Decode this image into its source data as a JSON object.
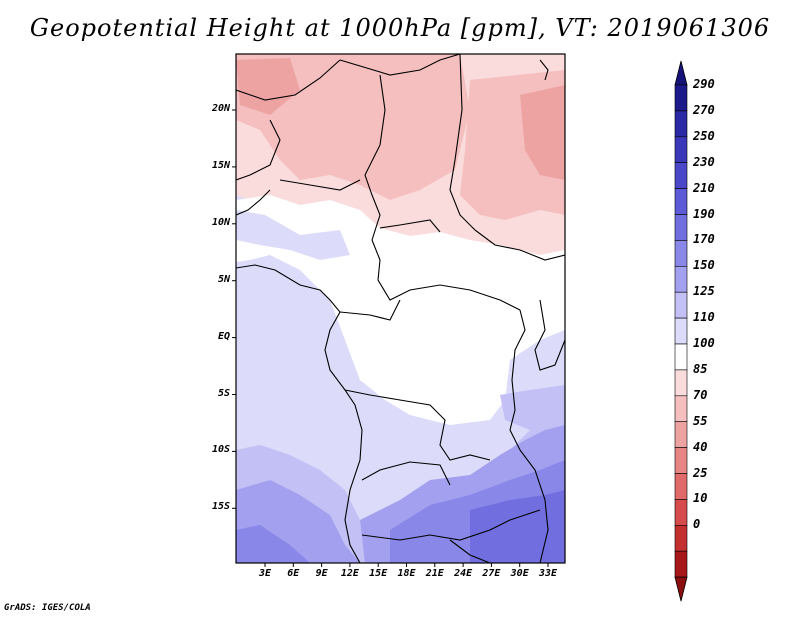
{
  "title": "Geopotential Height at 1000hPa [gpm], VT: 2019061306",
  "footer": "GrADS: IGES/COLA",
  "map": {
    "lon_labels": [
      "3E",
      "6E",
      "9E",
      "12E",
      "15E",
      "18E",
      "21E",
      "24E",
      "27E",
      "30E",
      "33E"
    ],
    "lat_labels": [
      "20N",
      "15N",
      "10N",
      "5N",
      "EQ",
      "5S",
      "10S",
      "15S"
    ],
    "lon_range": [
      0,
      35
    ],
    "lat_range": [
      -20,
      25
    ]
  },
  "colorbar": {
    "labels": [
      "290",
      "270",
      "250",
      "230",
      "210",
      "190",
      "170",
      "150",
      "125",
      "110",
      "100",
      "85",
      "70",
      "55",
      "40",
      "25",
      "10",
      "0"
    ],
    "colors": [
      "#1c1a8a",
      "#2a28a4",
      "#3a38b8",
      "#4a48c8",
      "#5c5ad6",
      "#716fe0",
      "#8987e8",
      "#a3a1ef",
      "#c2c0f5",
      "#dcdcfa",
      "#ffffff",
      "#fadcdc",
      "#f5bfbf",
      "#eea3a3",
      "#e88686",
      "#e06a6a",
      "#d64c4c",
      "#c43030",
      "#a81818"
    ],
    "arrow_top_color": "#15137a",
    "arrow_bottom_color": "#8c0e0e"
  }
}
